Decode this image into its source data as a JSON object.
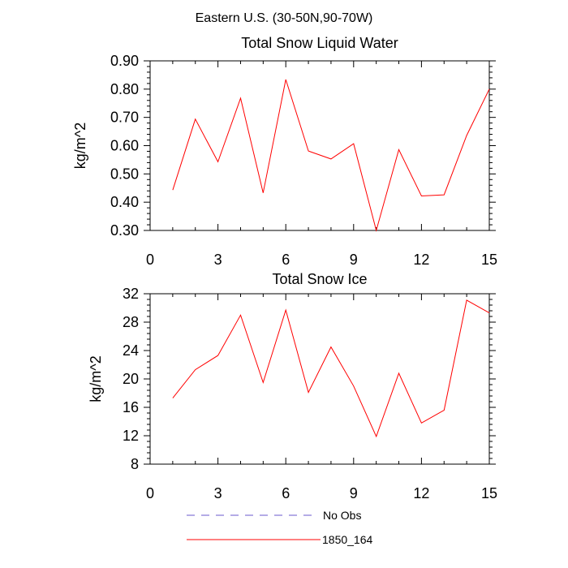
{
  "page": {
    "title": "Eastern U.S. (30-50N,90-70W)"
  },
  "chart_data": [
    {
      "type": "line",
      "title": "Total Snow Liquid Water",
      "xlabel": "",
      "ylabel": "kg/m^2",
      "xlim": [
        0,
        15
      ],
      "ylim": [
        0.3,
        0.9
      ],
      "x_ticks": [
        0,
        3,
        6,
        9,
        12,
        15
      ],
      "y_ticks": [
        "0.30",
        "0.40",
        "0.50",
        "0.60",
        "0.70",
        "0.80",
        "0.90"
      ],
      "x": [
        1,
        2,
        3,
        4,
        5,
        6,
        7,
        8,
        9,
        10,
        11,
        12,
        13,
        14,
        15
      ],
      "series": [
        {
          "name": "1850_164",
          "color": "#ff0000",
          "values": [
            0.443,
            0.694,
            0.543,
            0.768,
            0.433,
            0.834,
            0.581,
            0.553,
            0.607,
            0.3,
            0.586,
            0.422,
            0.426,
            0.636,
            0.8
          ]
        }
      ],
      "grid": false
    },
    {
      "type": "line",
      "title": "Total Snow Ice",
      "xlabel": "",
      "ylabel": "kg/m^2",
      "xlim": [
        0,
        15
      ],
      "ylim": [
        8,
        32
      ],
      "x_ticks": [
        0,
        3,
        6,
        9,
        12,
        15
      ],
      "y_ticks": [
        "8",
        "12",
        "16",
        "20",
        "24",
        "28",
        "32"
      ],
      "x": [
        1,
        2,
        3,
        4,
        5,
        6,
        7,
        8,
        9,
        10,
        11,
        12,
        13,
        14,
        15
      ],
      "series": [
        {
          "name": "1850_164",
          "color": "#ff0000",
          "values": [
            17.3,
            21.3,
            23.3,
            29.0,
            19.5,
            29.7,
            18.1,
            24.5,
            19.0,
            11.9,
            20.8,
            13.8,
            15.6,
            31.1,
            29.3
          ]
        }
      ],
      "grid": false
    }
  ],
  "legend": {
    "placement": "bottom",
    "entries": [
      {
        "label": "No Obs",
        "color": "#6a5acd",
        "style": "dashed"
      },
      {
        "label": "1850_164",
        "color": "#ff0000",
        "style": "solid"
      }
    ]
  }
}
